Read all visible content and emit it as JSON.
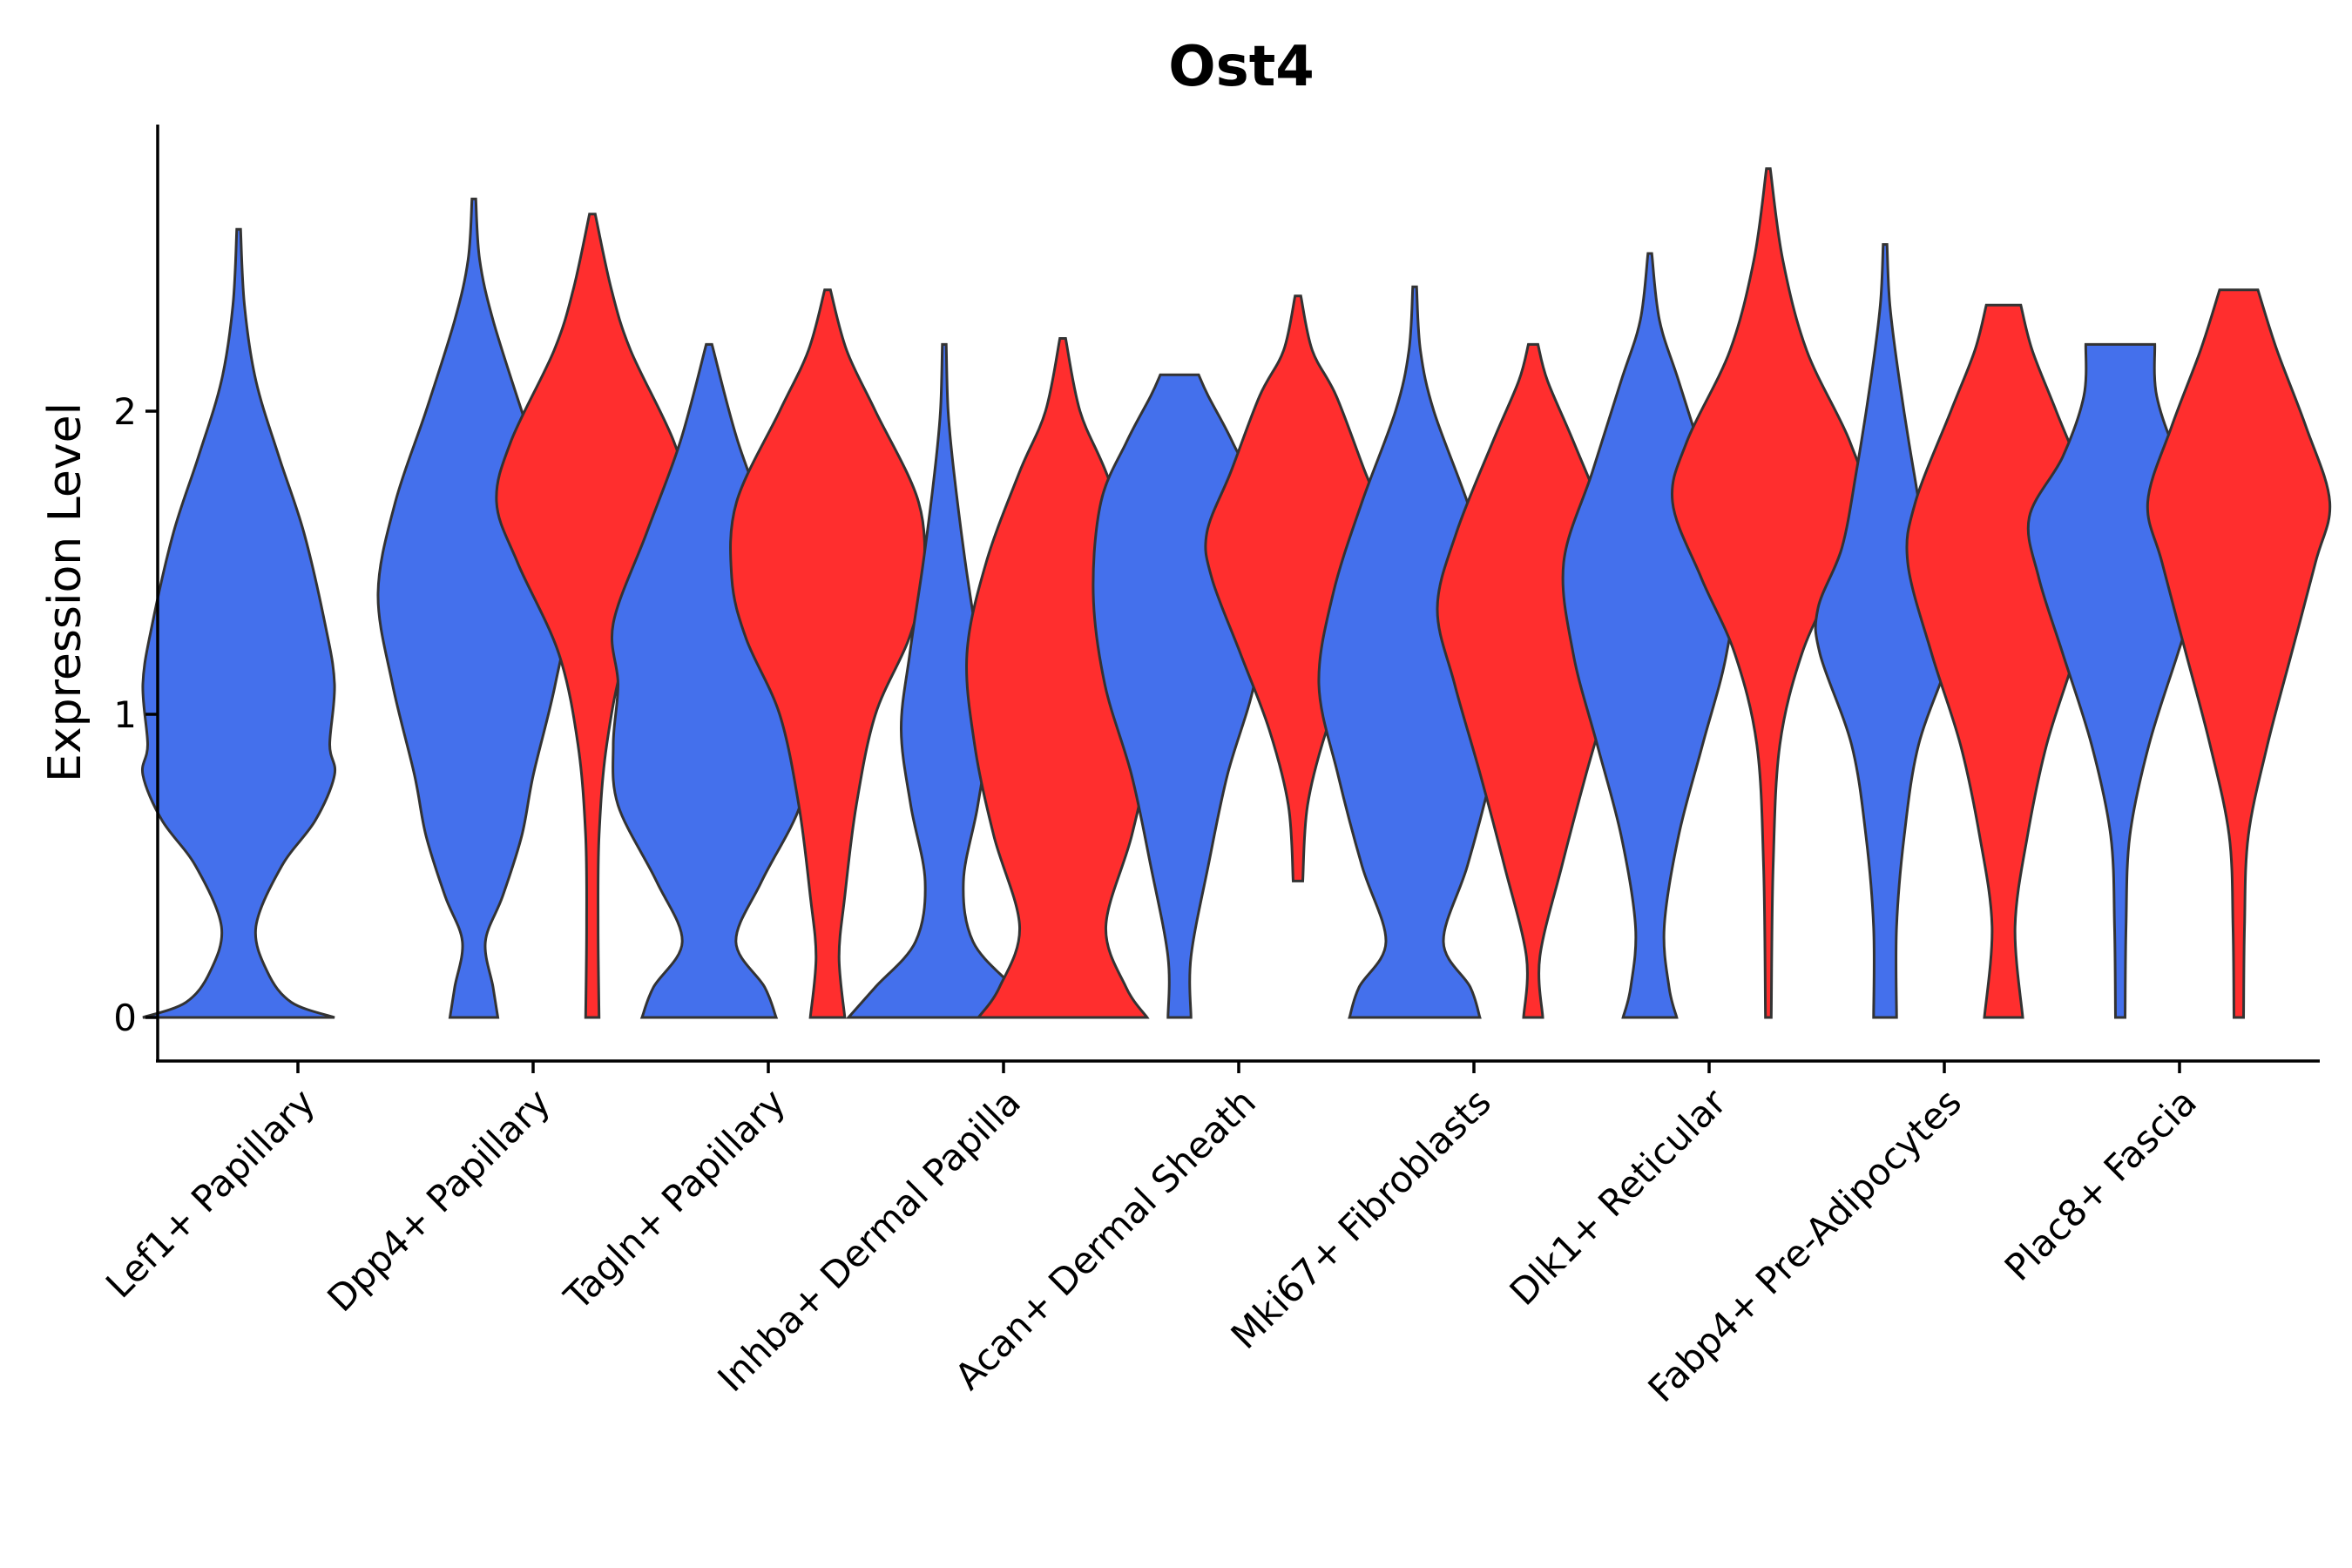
{
  "chart_data": {
    "type": "violin",
    "title": "Ost4",
    "xlabel": "",
    "ylabel": "Expression Level",
    "ylim": [
      -0.14,
      2.95
    ],
    "yticks": [
      0,
      1,
      2
    ],
    "yticklabels": [
      "0",
      "1",
      "2"
    ],
    "grid": false,
    "legend": "none",
    "colors": {
      "group_a": "#4470EC",
      "group_b": "#FF2E2E",
      "outline": "#333333"
    },
    "categories": [
      "Lef1+ Papillary",
      "Dpp4+ Papillary",
      "Tagln+ Papillary",
      "Inhba+ Dermal Papilla",
      "Acan+ Dermal Sheath",
      "Mki67+ Fibroblasts",
      "Dlk1+ Reticular",
      "Fabp4+ Pre-Adipocytes",
      "Plac8+ Fascia"
    ],
    "violins": [
      {
        "category": "Lef1+ Papillary",
        "group": "a",
        "min": 0,
        "max": 2.6,
        "profile": [
          [
            0,
            1.0
          ],
          [
            0.05,
            0.55
          ],
          [
            0.15,
            0.3
          ],
          [
            0.3,
            0.18
          ],
          [
            0.5,
            0.45
          ],
          [
            0.65,
            0.8
          ],
          [
            0.8,
            1.0
          ],
          [
            0.9,
            0.95
          ],
          [
            1.1,
            1.0
          ],
          [
            1.3,
            0.9
          ],
          [
            1.6,
            0.68
          ],
          [
            1.85,
            0.42
          ],
          [
            2.1,
            0.18
          ],
          [
            2.35,
            0.06
          ],
          [
            2.6,
            0.02
          ]
        ]
      },
      {
        "category": "Dpp4+ Papillary",
        "group": "a",
        "min": 0,
        "max": 2.7,
        "profile": [
          [
            0,
            0.25
          ],
          [
            0.1,
            0.2
          ],
          [
            0.25,
            0.12
          ],
          [
            0.4,
            0.3
          ],
          [
            0.6,
            0.5
          ],
          [
            0.8,
            0.62
          ],
          [
            1.1,
            0.85
          ],
          [
            1.4,
            1.0
          ],
          [
            1.7,
            0.82
          ],
          [
            2.0,
            0.5
          ],
          [
            2.3,
            0.2
          ],
          [
            2.5,
            0.06
          ],
          [
            2.7,
            0.02
          ]
        ]
      },
      {
        "category": "Dpp4+ Papillary",
        "group": "b",
        "min": 0,
        "max": 2.65,
        "profile": [
          [
            0,
            0.07
          ],
          [
            0.3,
            0.06
          ],
          [
            0.6,
            0.07
          ],
          [
            0.9,
            0.15
          ],
          [
            1.2,
            0.35
          ],
          [
            1.5,
            0.78
          ],
          [
            1.7,
            1.0
          ],
          [
            1.9,
            0.85
          ],
          [
            2.2,
            0.4
          ],
          [
            2.4,
            0.2
          ],
          [
            2.65,
            0.03
          ]
        ]
      },
      {
        "category": "Tagln+ Papillary",
        "group": "a",
        "min": 0,
        "max": 2.22,
        "profile": [
          [
            0,
            0.7
          ],
          [
            0.1,
            0.58
          ],
          [
            0.25,
            0.28
          ],
          [
            0.45,
            0.55
          ],
          [
            0.7,
            0.95
          ],
          [
            0.9,
            1.0
          ],
          [
            1.1,
            0.95
          ],
          [
            1.3,
            1.0
          ],
          [
            1.6,
            0.65
          ],
          [
            1.9,
            0.3
          ],
          [
            2.22,
            0.03
          ]
        ]
      },
      {
        "category": "Tagln+ Papillary",
        "group": "b",
        "min": 0,
        "max": 2.4,
        "profile": [
          [
            0,
            0.18
          ],
          [
            0.2,
            0.12
          ],
          [
            0.4,
            0.18
          ],
          [
            0.7,
            0.3
          ],
          [
            1.0,
            0.5
          ],
          [
            1.25,
            0.85
          ],
          [
            1.45,
            1.0
          ],
          [
            1.7,
            0.95
          ],
          [
            2.0,
            0.5
          ],
          [
            2.2,
            0.2
          ],
          [
            2.4,
            0.03
          ]
        ]
      },
      {
        "category": "Inhba+ Dermal Papilla",
        "group": "a",
        "min": 0,
        "max": 2.22,
        "profile": [
          [
            0,
            1.0
          ],
          [
            0.1,
            0.72
          ],
          [
            0.25,
            0.3
          ],
          [
            0.45,
            0.2
          ],
          [
            0.7,
            0.35
          ],
          [
            0.95,
            0.45
          ],
          [
            1.2,
            0.36
          ],
          [
            1.5,
            0.22
          ],
          [
            1.8,
            0.1
          ],
          [
            2.0,
            0.04
          ],
          [
            2.22,
            0.02
          ]
        ]
      },
      {
        "category": "Inhba+ Dermal Papilla",
        "group": "b",
        "min": 0,
        "max": 2.24,
        "profile": [
          [
            0,
            0.88
          ],
          [
            0.1,
            0.66
          ],
          [
            0.3,
            0.45
          ],
          [
            0.6,
            0.72
          ],
          [
            0.9,
            0.92
          ],
          [
            1.2,
            1.0
          ],
          [
            1.5,
            0.8
          ],
          [
            1.8,
            0.45
          ],
          [
            2.0,
            0.18
          ],
          [
            2.24,
            0.03
          ]
        ]
      },
      {
        "category": "Acan+ Dermal Sheath",
        "group": "a",
        "min": 0,
        "max": 2.12,
        "profile": [
          [
            0,
            0.12
          ],
          [
            0.2,
            0.12
          ],
          [
            0.5,
            0.3
          ],
          [
            0.8,
            0.5
          ],
          [
            1.1,
            0.78
          ],
          [
            1.4,
            0.9
          ],
          [
            1.7,
            0.82
          ],
          [
            1.9,
            0.55
          ],
          [
            2.05,
            0.3
          ],
          [
            2.12,
            0.2
          ]
        ]
      },
      {
        "category": "Acan+ Dermal Sheath",
        "group": "b",
        "min": 0.45,
        "max": 2.38,
        "profile": [
          [
            0.45,
            0.05
          ],
          [
            0.7,
            0.1
          ],
          [
            0.95,
            0.3
          ],
          [
            1.2,
            0.6
          ],
          [
            1.45,
            0.9
          ],
          [
            1.6,
            0.95
          ],
          [
            1.8,
            0.7
          ],
          [
            2.05,
            0.4
          ],
          [
            2.2,
            0.15
          ],
          [
            2.38,
            0.03
          ]
        ]
      },
      {
        "category": "Mki67+ Fibroblasts",
        "group": "a",
        "min": 0,
        "max": 2.41,
        "profile": [
          [
            0,
            0.68
          ],
          [
            0.1,
            0.58
          ],
          [
            0.25,
            0.3
          ],
          [
            0.5,
            0.55
          ],
          [
            0.8,
            0.8
          ],
          [
            1.1,
            1.0
          ],
          [
            1.4,
            0.85
          ],
          [
            1.7,
            0.55
          ],
          [
            2.0,
            0.2
          ],
          [
            2.2,
            0.06
          ],
          [
            2.41,
            0.02
          ]
        ]
      },
      {
        "category": "Mki67+ Fibroblasts",
        "group": "b",
        "min": 0,
        "max": 2.22,
        "profile": [
          [
            0,
            0.1
          ],
          [
            0.2,
            0.07
          ],
          [
            0.5,
            0.3
          ],
          [
            0.8,
            0.55
          ],
          [
            1.1,
            0.82
          ],
          [
            1.35,
            1.0
          ],
          [
            1.6,
            0.8
          ],
          [
            1.9,
            0.42
          ],
          [
            2.1,
            0.15
          ],
          [
            2.22,
            0.05
          ]
        ]
      },
      {
        "category": "Dlk1+ Reticular",
        "group": "a",
        "min": 0,
        "max": 2.52,
        "profile": [
          [
            0,
            0.28
          ],
          [
            0.1,
            0.2
          ],
          [
            0.3,
            0.15
          ],
          [
            0.6,
            0.3
          ],
          [
            0.9,
            0.55
          ],
          [
            1.2,
            0.8
          ],
          [
            1.5,
            0.9
          ],
          [
            1.8,
            0.6
          ],
          [
            2.1,
            0.3
          ],
          [
            2.3,
            0.1
          ],
          [
            2.52,
            0.02
          ]
        ]
      },
      {
        "category": "Dlk1+ Reticular",
        "group": "b",
        "min": 0,
        "max": 2.8,
        "profile": [
          [
            0,
            0.03
          ],
          [
            0.5,
            0.05
          ],
          [
            0.9,
            0.12
          ],
          [
            1.2,
            0.35
          ],
          [
            1.45,
            0.7
          ],
          [
            1.7,
            1.0
          ],
          [
            1.9,
            0.85
          ],
          [
            2.2,
            0.4
          ],
          [
            2.5,
            0.15
          ],
          [
            2.8,
            0.02
          ]
        ]
      },
      {
        "category": "Fabp4+ Pre-Adipocytes",
        "group": "a",
        "min": 0,
        "max": 2.55,
        "profile": [
          [
            0,
            0.12
          ],
          [
            0.3,
            0.12
          ],
          [
            0.6,
            0.2
          ],
          [
            0.9,
            0.35
          ],
          [
            1.2,
            0.68
          ],
          [
            1.35,
            0.7
          ],
          [
            1.55,
            0.45
          ],
          [
            1.8,
            0.3
          ],
          [
            2.1,
            0.15
          ],
          [
            2.35,
            0.05
          ],
          [
            2.55,
            0.02
          ]
        ]
      },
      {
        "category": "Fabp4+ Pre-Adipocytes",
        "group": "b",
        "min": 0,
        "max": 2.35,
        "profile": [
          [
            0,
            0.2
          ],
          [
            0.3,
            0.12
          ],
          [
            0.6,
            0.25
          ],
          [
            0.9,
            0.45
          ],
          [
            1.2,
            0.75
          ],
          [
            1.5,
            1.0
          ],
          [
            1.7,
            0.92
          ],
          [
            2.0,
            0.55
          ],
          [
            2.2,
            0.3
          ],
          [
            2.35,
            0.18
          ]
        ]
      },
      {
        "category": "Plac8+ Fascia",
        "group": "a",
        "min": 0,
        "max": 2.22,
        "profile": [
          [
            0,
            0.05
          ],
          [
            0.3,
            0.06
          ],
          [
            0.6,
            0.1
          ],
          [
            0.9,
            0.3
          ],
          [
            1.2,
            0.6
          ],
          [
            1.45,
            0.85
          ],
          [
            1.65,
            0.95
          ],
          [
            1.85,
            0.6
          ],
          [
            2.05,
            0.38
          ],
          [
            2.22,
            0.36
          ]
        ]
      },
      {
        "category": "Plac8+ Fascia",
        "group": "b",
        "min": 0,
        "max": 2.4,
        "profile": [
          [
            0,
            0.05
          ],
          [
            0.3,
            0.06
          ],
          [
            0.6,
            0.1
          ],
          [
            0.9,
            0.3
          ],
          [
            1.2,
            0.55
          ],
          [
            1.5,
            0.8
          ],
          [
            1.7,
            0.95
          ],
          [
            1.95,
            0.7
          ],
          [
            2.2,
            0.4
          ],
          [
            2.4,
            0.2
          ]
        ]
      }
    ]
  }
}
